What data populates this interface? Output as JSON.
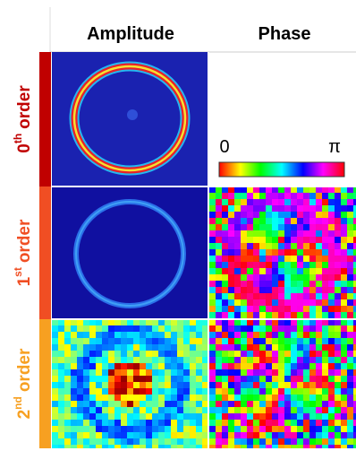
{
  "columns": [
    "Amplitude",
    "Phase"
  ],
  "rows": [
    {
      "number": "0",
      "suffix": "th",
      "word": "order",
      "color": "#c00000"
    },
    {
      "number": "1",
      "suffix": "st",
      "word": "order",
      "color": "#f04e23"
    },
    {
      "number": "2",
      "suffix": "nd",
      "word": "order",
      "color": "#f7a021"
    }
  ],
  "colorbar": {
    "min_label": "0",
    "max_label": "π"
  }
}
